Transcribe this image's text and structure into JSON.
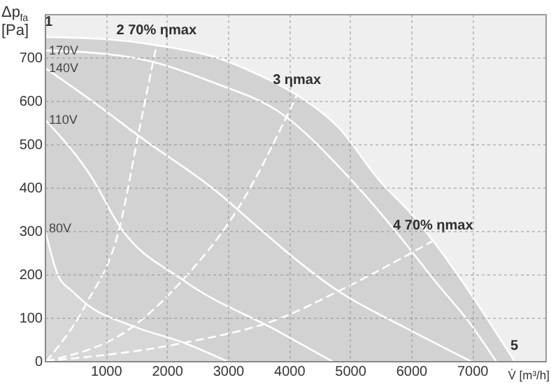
{
  "chart_data": {
    "type": "line",
    "xlabel": "V̇ [m³/h]",
    "ylabel": "Δp$_{fa}$ [Pa]",
    "xlim": [
      0,
      8200
    ],
    "ylim": [
      0,
      800
    ],
    "xticks": [
      1000,
      2000,
      3000,
      4000,
      5000,
      6000,
      7000
    ],
    "yticks": [
      0,
      100,
      200,
      300,
      400,
      500,
      600,
      700
    ],
    "grid": true,
    "series": [
      {
        "type": "area",
        "color": "#c6c6c6",
        "x": [
          0,
          1000,
          1830,
          2800,
          3500,
          4130,
          4800,
          5500,
          6000,
          6360,
          7000,
          7690
        ],
        "values": [
          747,
          742,
          728,
          700,
          660,
          613,
          540,
          413,
          340,
          277,
          150,
          0
        ]
      },
      {
        "name": "80V",
        "type": "area",
        "color": "#d9d9d9",
        "x": [
          0,
          220,
          450,
          680,
          1450,
          2280,
          2980
        ],
        "values": [
          306,
          197,
          161,
          132,
          80,
          42,
          0
        ]
      },
      {
        "name": "110V",
        "color": "#ffffff",
        "x": [
          0,
          770,
          1230,
          2260,
          3830,
          4700
        ],
        "values": [
          557,
          423,
          310,
          187,
          68,
          0
        ]
      },
      {
        "name": "140V",
        "color": "#ffffff",
        "x": [
          0,
          770,
          1530,
          2910,
          3370,
          4810,
          6000,
          6970
        ],
        "values": [
          676,
          600,
          520,
          380,
          323,
          161,
          70,
          0
        ]
      },
      {
        "name": "170V",
        "color": "#ffffff",
        "x": [
          0,
          1000,
          1760,
          2800,
          3830,
          5050,
          5800,
          6360,
          7000,
          7390
        ],
        "values": [
          716,
          708,
          690,
          640,
          575,
          413,
          290,
          190,
          80,
          0
        ]
      },
      {
        "color": "#ffffff",
        "line_style": "dashed",
        "x": [
          30,
          680,
          1230,
          1530,
          1830
        ],
        "values": [
          0,
          132,
          310,
          520,
          728
        ]
      },
      {
        "color": "#ffffff",
        "line_style": "dashed",
        "x": [
          30,
          1450,
          2260,
          3150,
          4130
        ],
        "values": [
          0,
          80,
          187,
          348,
          613
        ]
      },
      {
        "color": "#ffffff",
        "line_style": "dashed",
        "x": [
          30,
          2280,
          3830,
          4810,
          6360
        ],
        "values": [
          0,
          42,
          97,
          161,
          277
        ]
      }
    ],
    "annotations": [
      {
        "text": "1",
        "x": 0,
        "y": 747
      },
      {
        "text": "2 70% ηmax",
        "x": 1830,
        "y": 728
      },
      {
        "text": "3 ηmax",
        "x": 4130,
        "y": 613
      },
      {
        "text": "4 70% ηmax",
        "x": 6360,
        "y": 277
      },
      {
        "text": "5",
        "x": 7690,
        "y": 0
      }
    ]
  }
}
